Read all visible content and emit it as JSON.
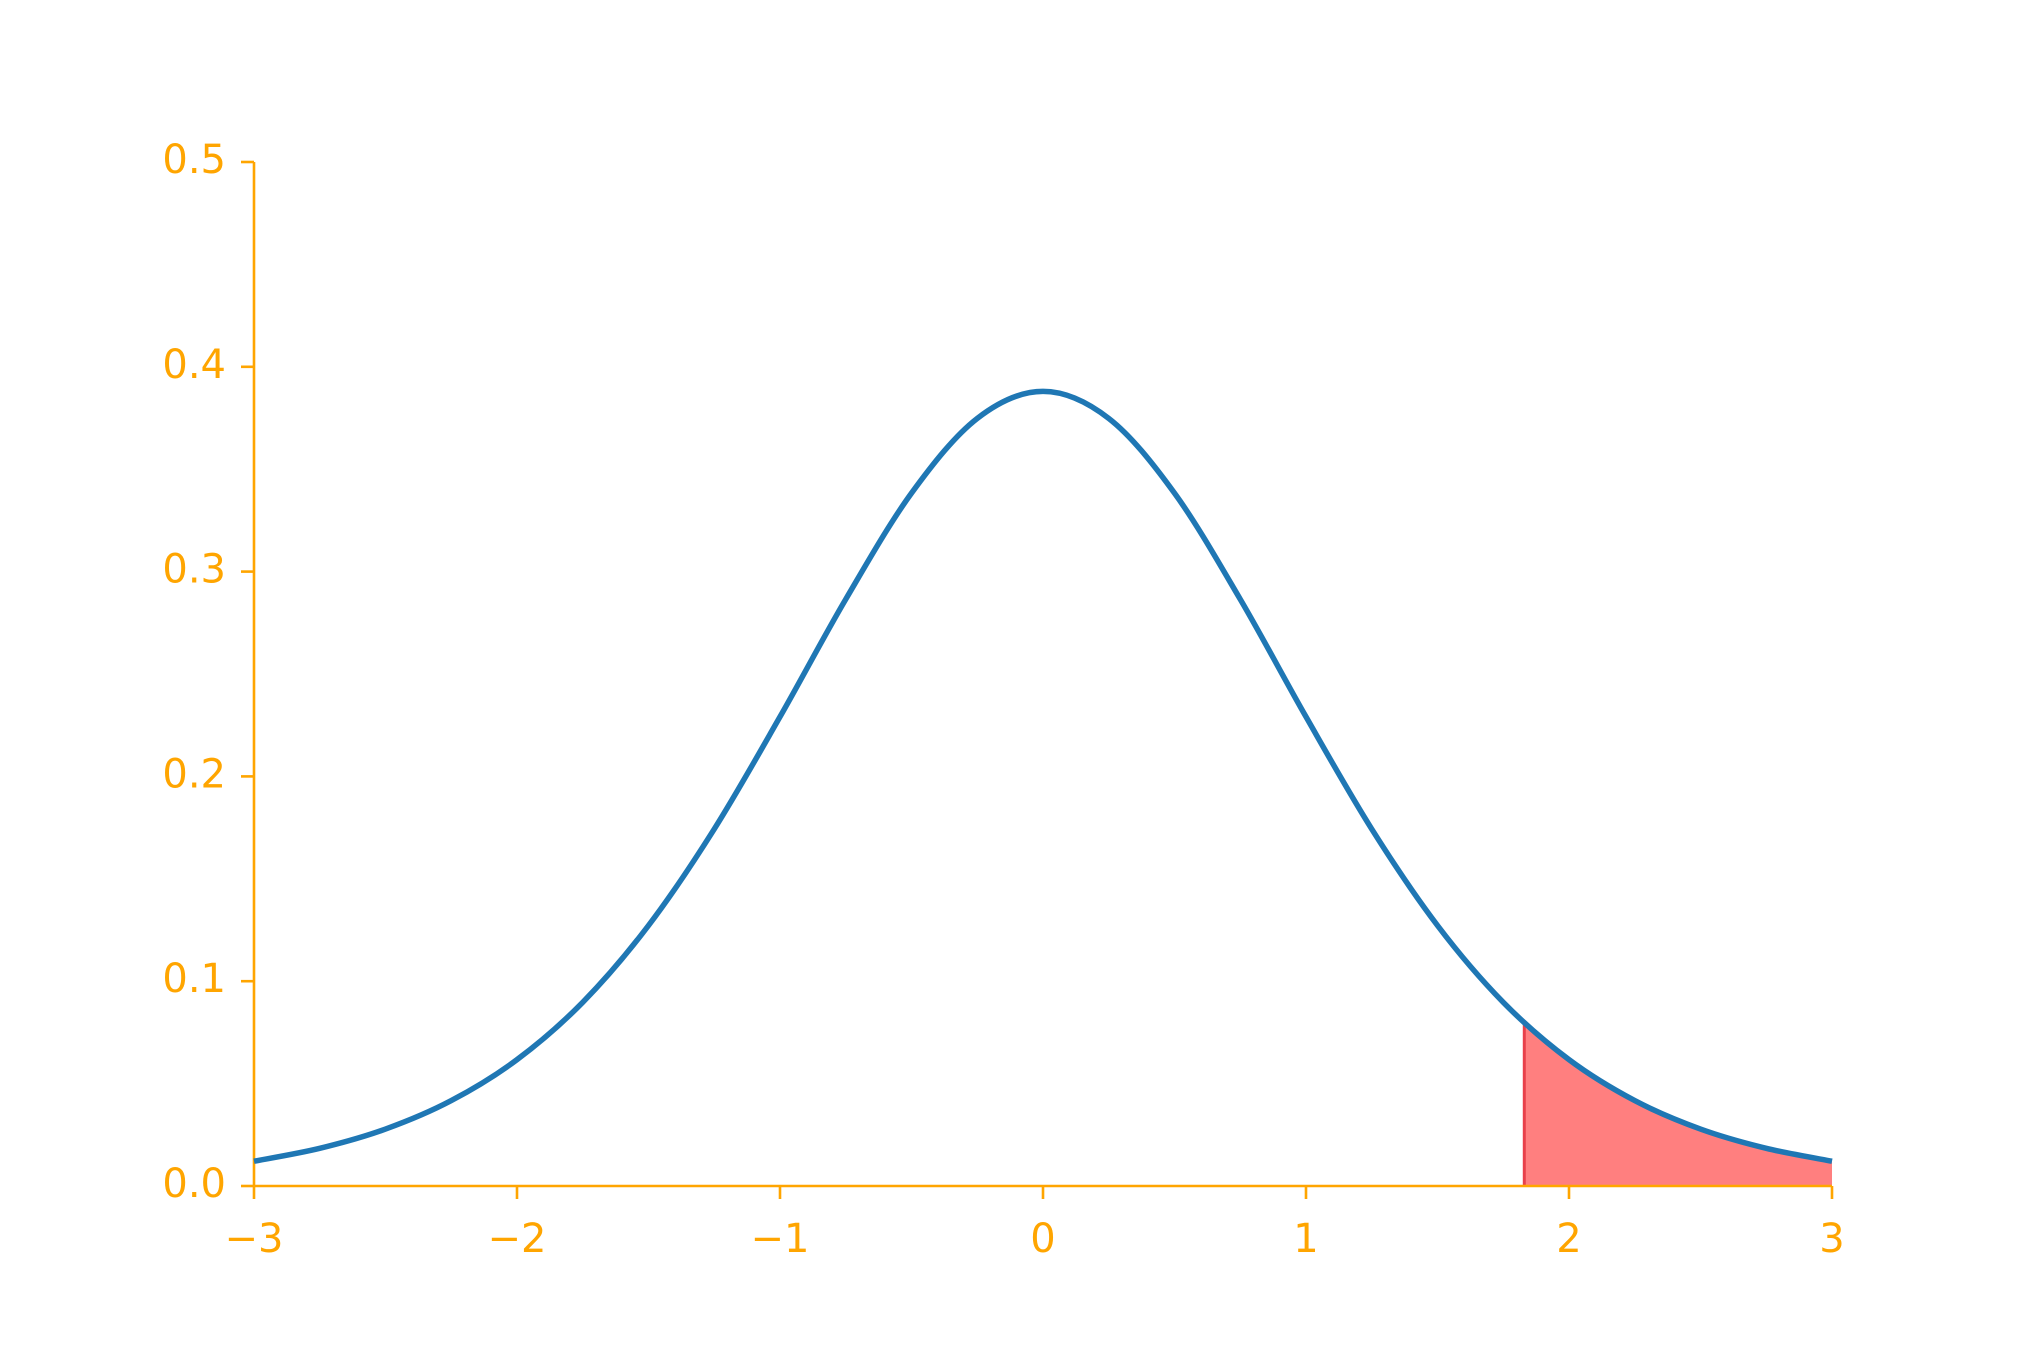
{
  "chart_data": {
    "type": "line",
    "x": [
      -3,
      -2.75,
      -2.5,
      -2.25,
      -2,
      -1.75,
      -1.5,
      -1.25,
      -1,
      -0.75,
      -0.5,
      -0.25,
      0,
      0.25,
      0.5,
      0.75,
      1,
      1.25,
      1.5,
      1.75,
      2,
      2.25,
      2.5,
      2.75,
      3
    ],
    "series": [
      {
        "color": "#1f77b4",
        "values": [
          0.0121,
          0.0184,
          0.0278,
          0.0417,
          0.0617,
          0.0897,
          0.1272,
          0.1743,
          0.2291,
          0.2865,
          0.3383,
          0.3748,
          0.388,
          0.3748,
          0.3383,
          0.2865,
          0.2291,
          0.1743,
          0.1272,
          0.0897,
          0.0617,
          0.0417,
          0.0278,
          0.0184,
          0.0121
        ]
      }
    ],
    "shaded_area": {
      "color": "#ff7f7f",
      "edge_color": "#e8404a",
      "x": [
        1.83,
        2,
        2.25,
        2.5,
        2.75,
        3
      ],
      "values": [
        0.0798,
        0.0617,
        0.0417,
        0.0278,
        0.0184,
        0.0121
      ]
    },
    "xlim": [
      -3,
      3
    ],
    "xticks": [
      {
        "value": -3,
        "label": "−3"
      },
      {
        "value": -2,
        "label": "−2"
      },
      {
        "value": -1,
        "label": "−1"
      },
      0,
      1,
      2,
      3
    ],
    "ylim": [
      0,
      0.5
    ],
    "yticks": [
      {
        "value": 0,
        "label": "0.0"
      },
      0.1,
      0.2,
      0.3,
      0.4,
      0.5
    ],
    "axis_color": "#ffa500"
  }
}
